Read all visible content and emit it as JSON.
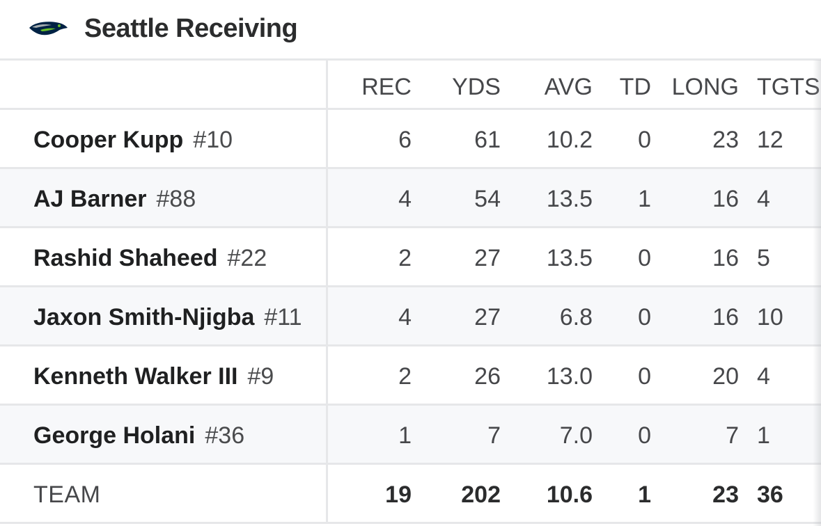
{
  "header": {
    "title": "Seattle Receiving",
    "logo_icon": "seahawks-logo-icon"
  },
  "columns": [
    "REC",
    "YDS",
    "AVG",
    "TD",
    "LONG",
    "TGTS"
  ],
  "players": [
    {
      "name": "Cooper Kupp",
      "number": "#10",
      "rec": "6",
      "yds": "61",
      "avg": "10.2",
      "td": "0",
      "long": "23",
      "tgts": "12"
    },
    {
      "name": "AJ Barner",
      "number": "#88",
      "rec": "4",
      "yds": "54",
      "avg": "13.5",
      "td": "1",
      "long": "16",
      "tgts": "4"
    },
    {
      "name": "Rashid Shaheed",
      "number": "#22",
      "rec": "2",
      "yds": "27",
      "avg": "13.5",
      "td": "0",
      "long": "16",
      "tgts": "5"
    },
    {
      "name": "Jaxon Smith-Njigba",
      "number": "#11",
      "rec": "4",
      "yds": "27",
      "avg": "6.8",
      "td": "0",
      "long": "16",
      "tgts": "10"
    },
    {
      "name": "Kenneth Walker III",
      "number": "#9",
      "rec": "2",
      "yds": "26",
      "avg": "13.0",
      "td": "0",
      "long": "20",
      "tgts": "4"
    },
    {
      "name": "George Holani",
      "number": "#36",
      "rec": "1",
      "yds": "7",
      "avg": "7.0",
      "td": "0",
      "long": "7",
      "tgts": "1"
    }
  ],
  "team_total": {
    "label": "TEAM",
    "rec": "19",
    "yds": "202",
    "avg": "10.6",
    "td": "1",
    "long": "23",
    "tgts": "36"
  },
  "colors": {
    "border": "#e6e7e9",
    "alt_row": "#f7f8fa",
    "logo_navy": "#002244",
    "logo_green": "#69be28",
    "logo_grey": "#a5acaf"
  }
}
